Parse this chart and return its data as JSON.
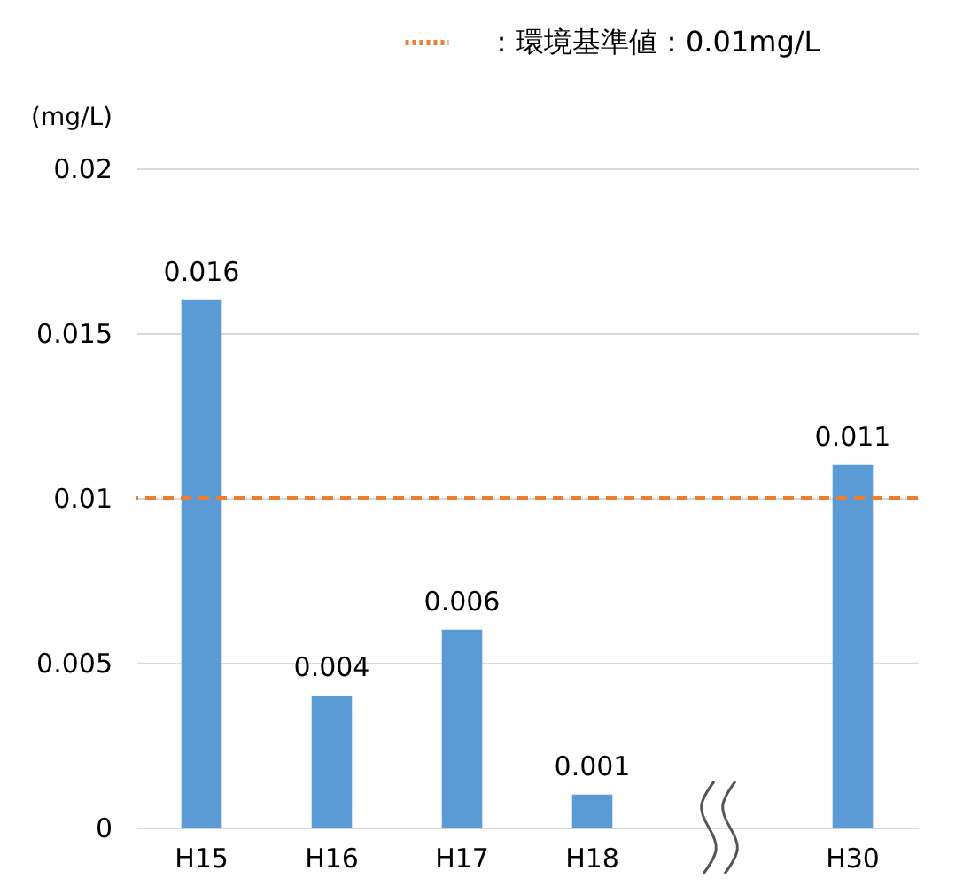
{
  "chart_data": {
    "type": "bar",
    "ylabel": "(mg/L)",
    "categories": [
      "H15",
      "H16",
      "H17",
      "H18",
      null,
      "H30"
    ],
    "values": [
      0.016,
      0.004,
      0.006,
      0.001,
      null,
      0.011
    ],
    "color": "#5b9bd5",
    "ylim": [
      0,
      0.02
    ],
    "yticks": [
      0,
      0.005,
      0.01,
      0.015,
      0.02
    ],
    "grid": "y",
    "data_labels": true,
    "legend": "top right",
    "ref_lines": [
      {
        "axis": "y",
        "value": 0.01,
        "label": "：環境基準値：0.01mg/L",
        "color": "#ed7d31",
        "line_style": "dashed"
      }
    ]
  }
}
